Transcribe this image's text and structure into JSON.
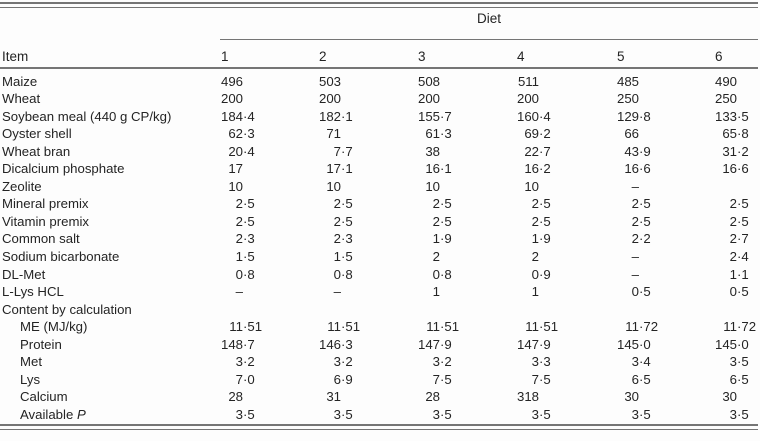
{
  "colors": {
    "text": "#242424",
    "rule": "#757575"
  },
  "table": {
    "spanner_label": "Diet",
    "stub_header": "Item",
    "diet_columns": [
      "1",
      "2",
      "3",
      "4",
      "5",
      "6"
    ],
    "rows": [
      {
        "label": "Maize",
        "values": [
          "496",
          "503",
          "508",
          "511",
          "485",
          "490"
        ]
      },
      {
        "label": "Wheat",
        "values": [
          "200",
          "200",
          "200",
          "200",
          "250",
          "250"
        ]
      },
      {
        "label": "Soybean meal (440 g CP/kg)",
        "values": [
          "184·4",
          "182·1",
          "155·7",
          "160·4",
          "129·8",
          "133·5"
        ]
      },
      {
        "label": "Oyster shell",
        "values": [
          "62·3",
          "71",
          "61·3",
          "69·2",
          "66",
          "65·8"
        ]
      },
      {
        "label": "Wheat bran",
        "values": [
          "20·4",
          "7·7",
          "38",
          "22·7",
          "43·9",
          "31·2"
        ]
      },
      {
        "label": "Dicalcium phosphate",
        "values": [
          "17",
          "17·1",
          "16·1",
          "16·2",
          "16·6",
          "16·6"
        ]
      },
      {
        "label": "Zeolite",
        "values": [
          "10",
          "10",
          "10",
          "10",
          "–",
          ""
        ]
      },
      {
        "label": "Mineral premix",
        "values": [
          "2·5",
          "2·5",
          "2·5",
          "2·5",
          "2·5",
          "2·5"
        ]
      },
      {
        "label": "Vitamin premix",
        "values": [
          "2·5",
          "2·5",
          "2·5",
          "2·5",
          "2·5",
          "2·5"
        ]
      },
      {
        "label": "Common salt",
        "values": [
          "2·3",
          "2·3",
          "1·9",
          "1·9",
          "2·2",
          "2·7"
        ]
      },
      {
        "label": "Sodium bicarbonate",
        "values": [
          "1·5",
          "1·5",
          "2",
          "2",
          "–",
          "2·4"
        ]
      },
      {
        "label": "DL-Met",
        "values": [
          "0·8",
          "0·8",
          "0·8",
          "0·9",
          "–",
          "1·1"
        ]
      },
      {
        "label": "L-Lys HCL",
        "values": [
          "–",
          "–",
          "1",
          "1",
          "0·5",
          "0·5"
        ]
      },
      {
        "label": "Content by calculation",
        "section": true,
        "values": [
          "",
          "",
          "",
          "",
          "",
          ""
        ]
      },
      {
        "label": "ME (MJ/kg)",
        "indent": true,
        "values": [
          "11·51",
          "11·51",
          "11·51",
          "11·51",
          "11·72",
          "11·72"
        ]
      },
      {
        "label": "Protein",
        "indent": true,
        "values": [
          "148·7",
          "146·3",
          "147·9",
          "147·9",
          "145·0",
          "145·0"
        ]
      },
      {
        "label": "Met",
        "indent": true,
        "values": [
          "3·2",
          "3·2",
          "3·2",
          "3·3",
          "3·4",
          "3·5"
        ]
      },
      {
        "label": "Lys",
        "indent": true,
        "values": [
          "7·0",
          "6·9",
          "7·5",
          "7·5",
          "6·5",
          "6·5"
        ]
      },
      {
        "label": "Calcium",
        "indent": true,
        "values": [
          "28",
          "31",
          "28",
          "318",
          "30",
          "30"
        ]
      },
      {
        "label": "Available ",
        "label_italic": "P",
        "indent": true,
        "values": [
          "3·5",
          "3·5",
          "3·5",
          "3·5",
          "3·5",
          "3·5"
        ]
      }
    ]
  }
}
